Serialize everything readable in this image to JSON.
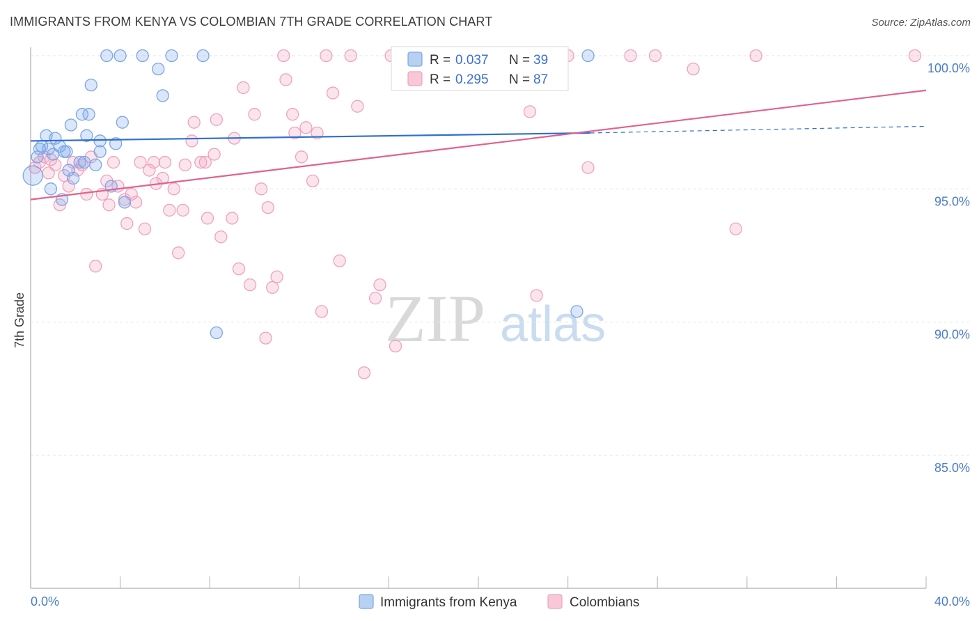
{
  "header": {
    "title": "IMMIGRANTS FROM KENYA VS COLOMBIAN 7TH GRADE CORRELATION CHART",
    "source": "Source: ZipAtlas.com"
  },
  "watermark": {
    "zip": "ZIP",
    "atlas": "atlas"
  },
  "legend": {
    "rows": [
      {
        "r_label": "R =",
        "r_value": "0.037",
        "n_label": "N =",
        "n_value": "39"
      },
      {
        "r_label": "R =",
        "r_value": "0.295",
        "n_label": "N =",
        "n_value": "87"
      }
    ]
  },
  "bottom_legend": {
    "items": [
      "Immigrants from Kenya",
      "Colombians"
    ]
  },
  "chart_data": {
    "type": "scatter",
    "title": "IMMIGRANTS FROM KENYA VS COLOMBIAN 7TH GRADE CORRELATION CHART",
    "xlabel": "",
    "ylabel": "7th Grade",
    "xlim": [
      0,
      40
    ],
    "ylim": [
      80.5,
      100.8
    ],
    "x_tick_labels": [
      "0.0%",
      "40.0%"
    ],
    "y_ticks": [
      85,
      90,
      95,
      100
    ],
    "y_tick_labels": [
      "85.0%",
      "90.0%",
      "95.0%",
      "100.0%"
    ],
    "grid": true,
    "legend_position": "top-center",
    "colors": {
      "kenya": "#7aa6e8",
      "kenya_line": "#2f6fd0",
      "colombia": "#f2a0bd",
      "colombia_line": "#e0628e"
    },
    "series": [
      {
        "name": "Immigrants from Kenya",
        "trend": {
          "x0": 0,
          "y0": 96.8,
          "x1": 25,
          "y1": 97.1,
          "dashed_to_x": 40,
          "dashed_to_y": 97.35
        },
        "points": [
          [
            0.1,
            95.5
          ],
          [
            0.3,
            96.2
          ],
          [
            0.5,
            96.6
          ],
          [
            0.7,
            97.0
          ],
          [
            0.8,
            96.5
          ],
          [
            0.9,
            95.0
          ],
          [
            1.1,
            96.9
          ],
          [
            1.3,
            96.6
          ],
          [
            1.4,
            94.6
          ],
          [
            1.5,
            96.4
          ],
          [
            1.6,
            96.4
          ],
          [
            1.7,
            95.7
          ],
          [
            1.9,
            95.4
          ],
          [
            1.8,
            97.4
          ],
          [
            2.3,
            97.8
          ],
          [
            2.5,
            97.0
          ],
          [
            2.6,
            97.8
          ],
          [
            2.7,
            98.9
          ],
          [
            2.9,
            95.9
          ],
          [
            3.1,
            96.8
          ],
          [
            3.1,
            96.4
          ],
          [
            3.4,
            100.0
          ],
          [
            3.6,
            95.1
          ],
          [
            4.0,
            100.0
          ],
          [
            4.1,
            97.5
          ],
          [
            4.2,
            94.5
          ],
          [
            3.8,
            96.7
          ],
          [
            5.0,
            100.0
          ],
          [
            5.7,
            99.5
          ],
          [
            5.9,
            98.5
          ],
          [
            6.3,
            100.0
          ],
          [
            7.7,
            100.0
          ],
          [
            8.3,
            89.6
          ],
          [
            24.4,
            90.4
          ],
          [
            24.9,
            100.0
          ],
          [
            2.4,
            96.0
          ],
          [
            0.4,
            96.5
          ],
          [
            1.0,
            96.3
          ],
          [
            2.2,
            96.0
          ]
        ]
      },
      {
        "name": "Colombians",
        "trend": {
          "x0": 0,
          "y0": 94.6,
          "x1": 40,
          "y1": 98.7
        },
        "points": [
          [
            0.2,
            95.8
          ],
          [
            0.4,
            96.0
          ],
          [
            0.6,
            96.2
          ],
          [
            0.8,
            95.6
          ],
          [
            0.9,
            96.1
          ],
          [
            1.1,
            95.9
          ],
          [
            1.3,
            94.4
          ],
          [
            1.5,
            95.5
          ],
          [
            1.7,
            95.1
          ],
          [
            1.9,
            96.0
          ],
          [
            2.1,
            95.7
          ],
          [
            2.3,
            95.9
          ],
          [
            2.5,
            94.8
          ],
          [
            2.7,
            96.2
          ],
          [
            2.9,
            92.1
          ],
          [
            3.2,
            94.8
          ],
          [
            3.4,
            95.3
          ],
          [
            3.5,
            94.4
          ],
          [
            3.7,
            96.0
          ],
          [
            3.9,
            95.1
          ],
          [
            4.2,
            94.6
          ],
          [
            4.3,
            93.7
          ],
          [
            4.5,
            94.8
          ],
          [
            4.7,
            94.5
          ],
          [
            4.9,
            96.0
          ],
          [
            5.1,
            93.5
          ],
          [
            5.3,
            95.7
          ],
          [
            5.5,
            96.0
          ],
          [
            5.6,
            95.2
          ],
          [
            5.9,
            95.4
          ],
          [
            6.0,
            96.0
          ],
          [
            6.2,
            94.2
          ],
          [
            6.4,
            95.0
          ],
          [
            6.6,
            92.6
          ],
          [
            6.8,
            94.2
          ],
          [
            6.9,
            95.9
          ],
          [
            7.2,
            96.8
          ],
          [
            7.3,
            97.5
          ],
          [
            7.6,
            96.0
          ],
          [
            7.8,
            96.0
          ],
          [
            7.9,
            93.9
          ],
          [
            8.2,
            96.3
          ],
          [
            8.3,
            97.6
          ],
          [
            8.5,
            93.2
          ],
          [
            9.0,
            93.9
          ],
          [
            9.1,
            96.9
          ],
          [
            9.3,
            92.0
          ],
          [
            9.5,
            98.8
          ],
          [
            9.8,
            91.4
          ],
          [
            10.0,
            97.8
          ],
          [
            10.3,
            95.0
          ],
          [
            10.5,
            89.4
          ],
          [
            10.6,
            94.3
          ],
          [
            10.8,
            91.3
          ],
          [
            11.0,
            91.7
          ],
          [
            11.3,
            100.0
          ],
          [
            11.4,
            99.1
          ],
          [
            11.7,
            97.8
          ],
          [
            11.8,
            97.1
          ],
          [
            12.1,
            96.2
          ],
          [
            12.3,
            97.3
          ],
          [
            12.6,
            95.3
          ],
          [
            12.8,
            97.1
          ],
          [
            13.0,
            90.4
          ],
          [
            13.2,
            100.0
          ],
          [
            13.5,
            98.6
          ],
          [
            13.8,
            92.3
          ],
          [
            14.3,
            100.0
          ],
          [
            14.6,
            98.1
          ],
          [
            14.9,
            88.1
          ],
          [
            15.4,
            90.9
          ],
          [
            15.6,
            91.4
          ],
          [
            16.1,
            100.0
          ],
          [
            16.3,
            89.1
          ],
          [
            16.9,
            100.0
          ],
          [
            18.0,
            100.0
          ],
          [
            20.2,
            100.0
          ],
          [
            22.3,
            97.9
          ],
          [
            22.6,
            91.0
          ],
          [
            24.0,
            100.0
          ],
          [
            24.9,
            95.8
          ],
          [
            26.8,
            100.0
          ],
          [
            27.9,
            100.0
          ],
          [
            29.6,
            99.5
          ],
          [
            31.5,
            93.5
          ],
          [
            32.4,
            100.0
          ],
          [
            39.5,
            100.0
          ]
        ]
      }
    ]
  }
}
